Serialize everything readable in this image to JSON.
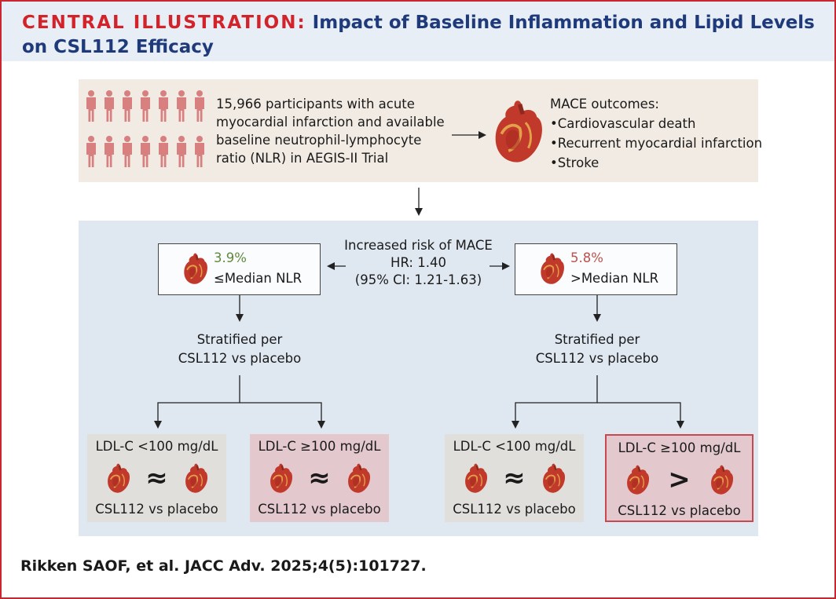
{
  "header": {
    "label": "CENTRAL ILLUSTRATION:",
    "title": "Impact of Baseline Inflammation and Lipid Levels on CSL112 Efficacy"
  },
  "population": {
    "text": "15,966 participants with acute myocardial infarction and available baseline neutrophil-lymphocyte ratio (NLR) in AEGIS-II Trial",
    "icon": "people-icon"
  },
  "mace": {
    "title": "MACE outcomes:",
    "items": [
      "Cardiovascular death",
      "Recurrent myocardial infarction",
      "Stroke"
    ]
  },
  "risk": {
    "line1": "Increased risk of MACE",
    "line2": "HR: 1.40",
    "line3": "(95% CI: 1.21-1.63)"
  },
  "groups": [
    {
      "pct": "3.9%",
      "pct_color": "#5f8a3a",
      "label": "≤Median NLR",
      "strat1": "Stratified per",
      "strat2": "CSL112 vs placebo",
      "subgroups": [
        {
          "ldl": "LDL-C <100 mg/dL",
          "symbol": "≈",
          "comparison": "CSL112 vs placebo"
        },
        {
          "ldl": "LDL-C ≥100 mg/dL",
          "symbol": "≈",
          "comparison": "CSL112 vs placebo"
        }
      ]
    },
    {
      "pct": "5.8%",
      "pct_color": "#c0504d",
      "label": ">Median NLR",
      "strat1": "Stratified per",
      "strat2": "CSL112 vs placebo",
      "subgroups": [
        {
          "ldl": "LDL-C <100 mg/dL",
          "symbol": "≈",
          "comparison": "CSL112 vs placebo"
        },
        {
          "ldl": "LDL-C ≥100 mg/dL",
          "symbol": ">",
          "comparison": "CSL112 vs placebo"
        }
      ]
    }
  ],
  "citation": "Rikken SAOF, et al. JACC Adv. 2025;4(5):101727.",
  "colors": {
    "frame": "#c8272f",
    "title": "#1f3a7a",
    "person": "#d87f7f",
    "heart": "#c0392b"
  }
}
